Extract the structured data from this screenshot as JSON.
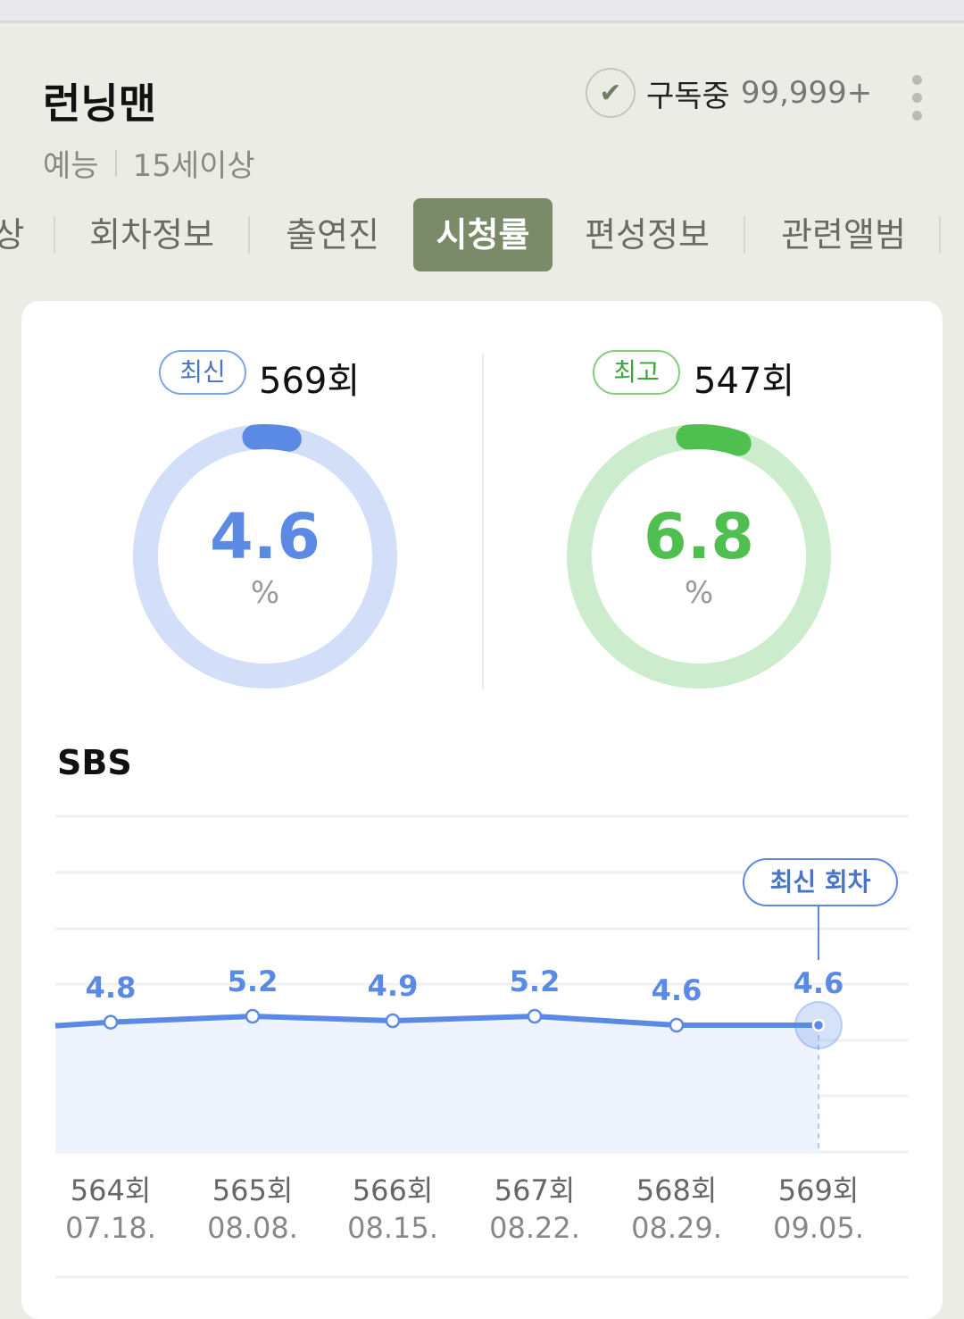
{
  "header": {
    "title": "런닝맨",
    "genre": "예능",
    "rating": "15세이상",
    "subscribe_label": "구독중",
    "subscribe_count": "99,999+"
  },
  "tabs": [
    {
      "label": "상"
    },
    {
      "label": "회차정보"
    },
    {
      "label": "출연진"
    },
    {
      "label": "시청률",
      "active": true
    },
    {
      "label": "편성정보"
    },
    {
      "label": "관련앨범"
    }
  ],
  "summary": {
    "latest": {
      "badge": "최신",
      "episode": "569회",
      "value": "4.6",
      "unit": "%",
      "color": "#5b8ae4",
      "track": "#d3dff8"
    },
    "best": {
      "badge": "최고",
      "episode": "547회",
      "value": "6.8",
      "unit": "%",
      "color": "#4fbf4f",
      "track": "#cdebcd"
    }
  },
  "chart_data": {
    "type": "line",
    "title": "SBS",
    "categories": [
      "564회",
      "565회",
      "566회",
      "567회",
      "568회",
      "569회"
    ],
    "dates": [
      "07.18.",
      "08.08.",
      "08.15.",
      "08.22.",
      "08.29.",
      "09.05."
    ],
    "values": [
      4.8,
      5.2,
      4.9,
      5.2,
      4.6,
      4.6
    ],
    "value_labels": [
      "4.8",
      "5.2",
      "4.9",
      "5.2",
      "4.6",
      "4.6"
    ],
    "highlight_label": "최신 회차",
    "color": "#5b8ae4",
    "grid": true
  }
}
